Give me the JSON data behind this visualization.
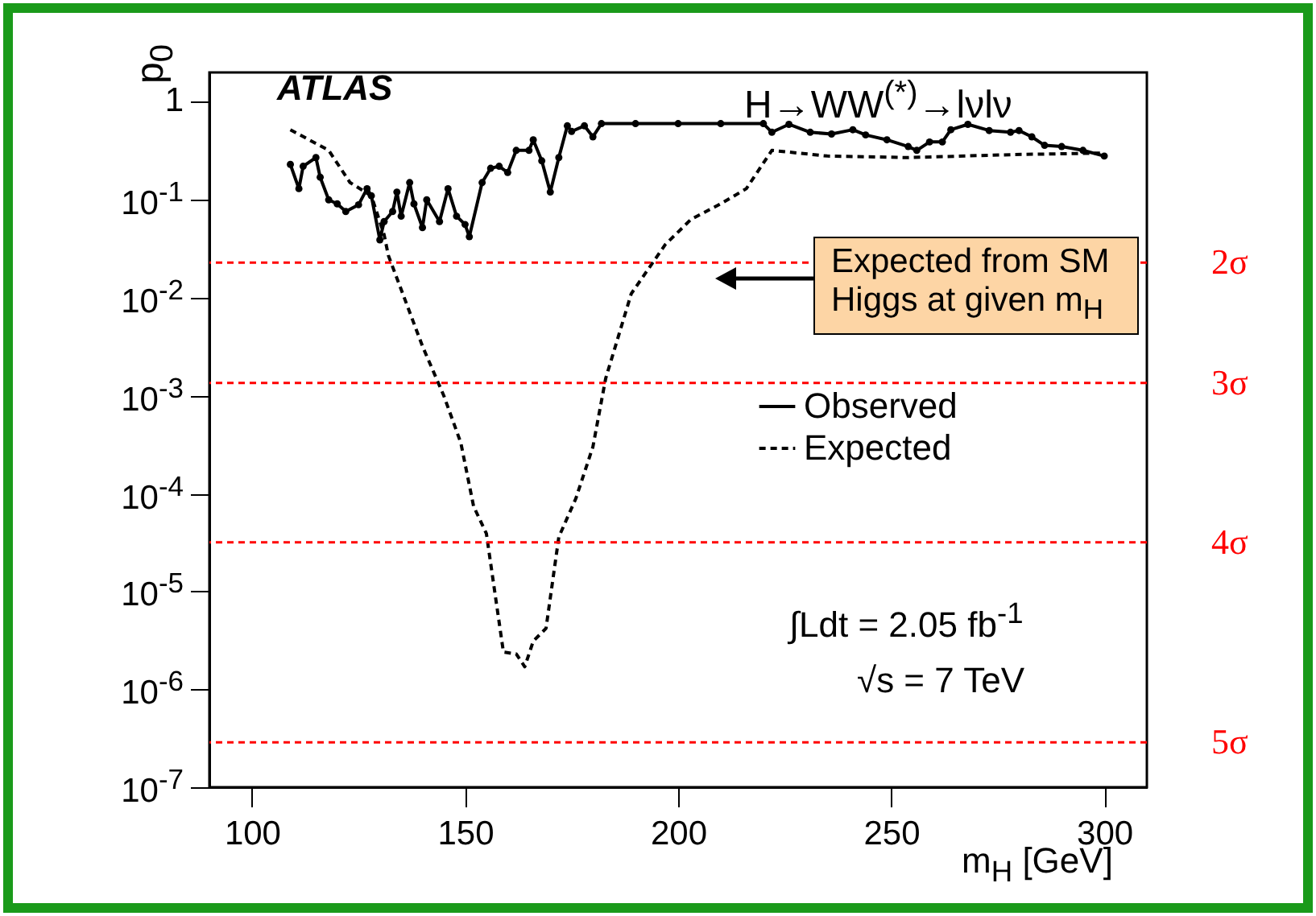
{
  "chart_data": {
    "type": "line",
    "title": "H→WW$^{(*)}$→lνlν",
    "xlabel": "m$_{H}$ [GeV]",
    "ylabel": "p$_{0}$",
    "annotations": [
      "ATLAS",
      "Expected from SM Higgs at given m$_{H}$",
      "∫Ldt = 2.05 fb$^{-1}$",
      "√s = 7 TeV"
    ],
    "series": [
      {
        "name": "Observed",
        "color": "#000000",
        "marker": "circle",
        "line_style": "solid",
        "x": [
          109,
          111,
          112,
          115,
          116,
          118,
          120,
          122,
          125,
          127,
          128,
          130,
          131,
          133,
          134,
          135,
          137,
          138,
          140,
          141,
          144,
          146,
          148,
          150,
          151,
          154,
          156,
          158,
          160,
          162,
          165,
          166,
          168,
          170,
          172,
          174,
          175,
          178,
          180,
          182,
          190,
          200,
          210,
          220,
          222,
          226,
          231,
          236,
          241,
          244,
          249,
          254,
          256,
          259,
          262,
          264,
          268,
          273,
          278,
          280,
          283,
          286,
          290,
          295,
          300
        ],
        "values": [
          0.23,
          0.13,
          0.22,
          0.27,
          0.17,
          0.1,
          0.091,
          0.076,
          0.089,
          0.13,
          0.11,
          0.039,
          0.06,
          0.076,
          0.12,
          0.068,
          0.15,
          0.091,
          0.052,
          0.1,
          0.06,
          0.13,
          0.068,
          0.056,
          0.042,
          0.15,
          0.21,
          0.22,
          0.19,
          0.32,
          0.32,
          0.41,
          0.25,
          0.12,
          0.27,
          0.57,
          0.5,
          0.57,
          0.44,
          0.6,
          0.6,
          0.6,
          0.6,
          0.6,
          0.49,
          0.59,
          0.49,
          0.47,
          0.52,
          0.46,
          0.41,
          0.35,
          0.32,
          0.39,
          0.39,
          0.52,
          0.59,
          0.51,
          0.49,
          0.51,
          0.44,
          0.36,
          0.35,
          0.32,
          0.28
        ]
      },
      {
        "name": "Expected",
        "color": "#000000",
        "marker": "none",
        "line_style": "dashed",
        "x": [
          109,
          118,
          123,
          128,
          131,
          132,
          140,
          145,
          149,
          152,
          155,
          159,
          162,
          164,
          166,
          169,
          172,
          176,
          180,
          183,
          189,
          197,
          203,
          210,
          216,
          222,
          235,
          254,
          279,
          299
        ],
        "values": [
          0.52,
          0.32,
          0.15,
          0.11,
          0.044,
          0.027,
          0.0032,
          0.001,
          0.00033,
          7.4e-05,
          3.9e-05,
          2.4e-06,
          2.3e-06,
          1.7e-06,
          3.1e-06,
          4.2e-06,
          3.6e-05,
          8.9e-05,
          0.0003,
          0.0015,
          0.011,
          0.035,
          0.063,
          0.091,
          0.13,
          0.32,
          0.28,
          0.27,
          0.29,
          0.3
        ]
      }
    ],
    "ref_lines": [
      {
        "axis": "y",
        "value": 0.0228,
        "label": "2σ",
        "color": "#ff0000",
        "line_style": "dashed"
      },
      {
        "axis": "y",
        "value": 0.00135,
        "label": "3σ",
        "color": "#ff0000",
        "line_style": "dashed"
      },
      {
        "axis": "y",
        "value": 3.17e-05,
        "label": "4σ",
        "color": "#ff0000",
        "line_style": "dashed"
      },
      {
        "axis": "y",
        "value": 2.87e-07,
        "label": "5σ",
        "color": "#ff0000",
        "line_style": "dashed"
      }
    ],
    "xlim": [
      90,
      310
    ],
    "xticks": [
      100,
      150,
      200,
      250,
      300
    ],
    "ylim": [
      1e-07,
      2
    ],
    "log": true,
    "yticks": [
      {
        "value": 1e-07,
        "label": "10$^{-7}$"
      },
      {
        "value": 1e-06,
        "label": "10$^{-6}$"
      },
      {
        "value": 1e-05,
        "label": "10$^{-5}$"
      },
      {
        "value": 0.0001,
        "label": "10$^{-4}$"
      },
      {
        "value": 0.001,
        "label": "10$^{-3}$"
      },
      {
        "value": 0.01,
        "label": "10$^{-2}$"
      },
      {
        "value": 0.1,
        "label": "10$^{-1}$"
      },
      1
    ],
    "grid": false,
    "legend": "right"
  }
}
